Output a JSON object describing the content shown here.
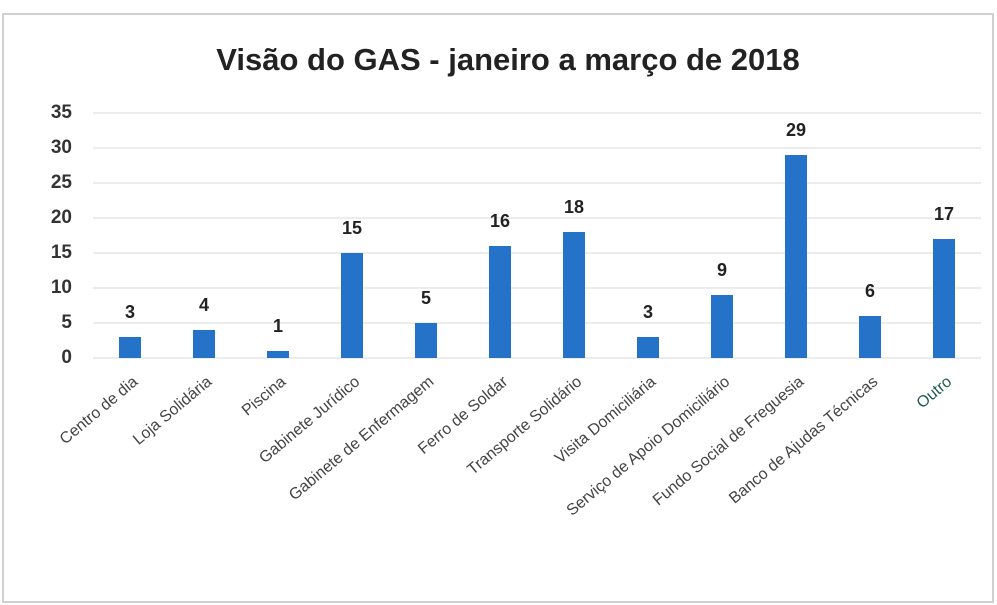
{
  "chart_data": {
    "type": "bar",
    "title": "Visão do GAS - janeiro a março de 2018",
    "categories": [
      "Centro de dia",
      "Loja Solidária",
      "Piscina",
      "Gabinete Jurídico",
      "Gabinete de Enfermagem",
      "Ferro de Soldar",
      "Transporte Solidário",
      "Visita Domiciliária",
      "Serviço de Apoio Domiciliário",
      "Fundo Social de Freguesia",
      "Banco de Ajudas Técnicas",
      "Outro"
    ],
    "values": [
      3,
      4,
      1,
      15,
      5,
      16,
      18,
      3,
      9,
      29,
      6,
      17
    ],
    "color": "#2473c8",
    "category_label_colors": [
      "#444",
      "#444",
      "#444",
      "#444",
      "#444",
      "#444",
      "#444",
      "#444",
      "#444",
      "#444",
      "#444",
      "#1e5b4f"
    ],
    "ylim": [
      0,
      35
    ],
    "yticks": [
      0,
      5,
      10,
      15,
      20,
      25,
      30,
      35
    ],
    "grid": true
  }
}
